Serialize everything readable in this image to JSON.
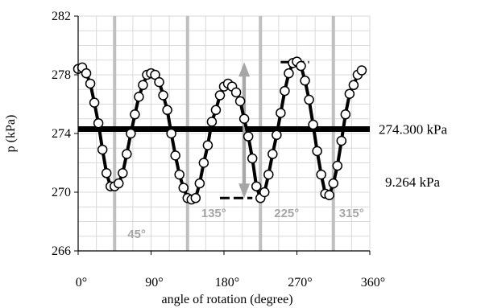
{
  "chart_data": {
    "type": "line",
    "xlabel": "angle of rotation (degree)",
    "ylabel": "p (kPa)",
    "xlim": [
      0,
      360
    ],
    "ylim": [
      266,
      282
    ],
    "x_ticks": [
      {
        "value": 0,
        "label": "0°"
      },
      {
        "value": 90,
        "label": "90°"
      },
      {
        "value": 180,
        "label": "180°"
      },
      {
        "value": 270,
        "label": "270°"
      },
      {
        "value": 360,
        "label": "360°"
      }
    ],
    "y_ticks": [
      {
        "value": 266,
        "label": "266"
      },
      {
        "value": 270,
        "label": "270"
      },
      {
        "value": 274,
        "label": "274"
      },
      {
        "value": 278,
        "label": "278"
      },
      {
        "value": 282,
        "label": "282"
      }
    ],
    "grid": "vertical and horizontal gridlines",
    "series_points": [
      [
        0,
        278.4
      ],
      [
        5,
        278.5
      ],
      [
        10,
        278.1
      ],
      [
        15,
        277.4
      ],
      [
        20,
        276.1
      ],
      [
        25,
        274.7
      ],
      [
        30,
        272.9
      ],
      [
        35,
        271.3
      ],
      [
        40,
        270.4
      ],
      [
        45,
        270.4
      ],
      [
        50,
        270.6
      ],
      [
        55,
        271.3
      ],
      [
        60,
        272.6
      ],
      [
        65,
        274.0
      ],
      [
        70,
        275.3
      ],
      [
        75,
        276.5
      ],
      [
        80,
        277.3
      ],
      [
        85,
        278.0
      ],
      [
        90,
        278.1
      ],
      [
        95,
        278.0
      ],
      [
        100,
        277.5
      ],
      [
        105,
        276.6
      ],
      [
        110,
        275.6
      ],
      [
        115,
        274.0
      ],
      [
        120,
        272.5
      ],
      [
        125,
        271.2
      ],
      [
        130,
        270.3
      ],
      [
        135,
        269.6
      ],
      [
        140,
        269.5
      ],
      [
        145,
        269.6
      ],
      [
        150,
        270.6
      ],
      [
        155,
        272.0
      ],
      [
        160,
        273.2
      ],
      [
        165,
        274.8
      ],
      [
        170,
        275.6
      ],
      [
        175,
        276.6
      ],
      [
        180,
        277.2
      ],
      [
        185,
        277.4
      ],
      [
        190,
        277.2
      ],
      [
        195,
        276.8
      ],
      [
        200,
        276.2
      ],
      [
        205,
        275.0
      ],
      [
        210,
        273.8
      ],
      [
        215,
        272.3
      ],
      [
        220,
        270.4
      ],
      [
        225,
        269.6
      ],
      [
        230,
        270.0
      ],
      [
        235,
        271.2
      ],
      [
        240,
        272.6
      ],
      [
        245,
        273.9
      ],
      [
        250,
        275.4
      ],
      [
        255,
        276.9
      ],
      [
        260,
        278.1
      ],
      [
        265,
        278.8
      ],
      [
        270,
        278.9
      ],
      [
        275,
        278.6
      ],
      [
        280,
        277.6
      ],
      [
        285,
        276.3
      ],
      [
        290,
        274.6
      ],
      [
        295,
        272.8
      ],
      [
        300,
        271.2
      ],
      [
        305,
        269.9
      ],
      [
        310,
        269.8
      ],
      [
        315,
        270.6
      ],
      [
        320,
        271.8
      ],
      [
        325,
        273.5
      ],
      [
        330,
        275.3
      ],
      [
        335,
        276.7
      ],
      [
        340,
        277.3
      ],
      [
        345,
        278.0
      ],
      [
        350,
        278.3
      ]
    ],
    "mean_line": {
      "value": 274.3,
      "label": "274.300 kPa"
    },
    "range_annotation": {
      "min": 269.6,
      "max": 278.86,
      "min_dash_x": [
        175,
        215
      ],
      "max_dash_x": [
        250,
        285
      ],
      "arrow_x": 205,
      "label": "9.264 kPa"
    },
    "angle_markers": [
      {
        "value": 45,
        "label": "45°"
      },
      {
        "value": 135,
        "label": "135°"
      },
      {
        "value": 225,
        "label": "225°"
      },
      {
        "value": 315,
        "label": "315°"
      }
    ],
    "colors": {
      "series": "#000000",
      "marker_fill": "#ffffff",
      "mean_line": "#000000",
      "angle_markers": "#bfbfbf",
      "angle_labels": "#a6a6a6",
      "arrow": "#a6a6a6",
      "grid": "#d9d9d9"
    }
  }
}
